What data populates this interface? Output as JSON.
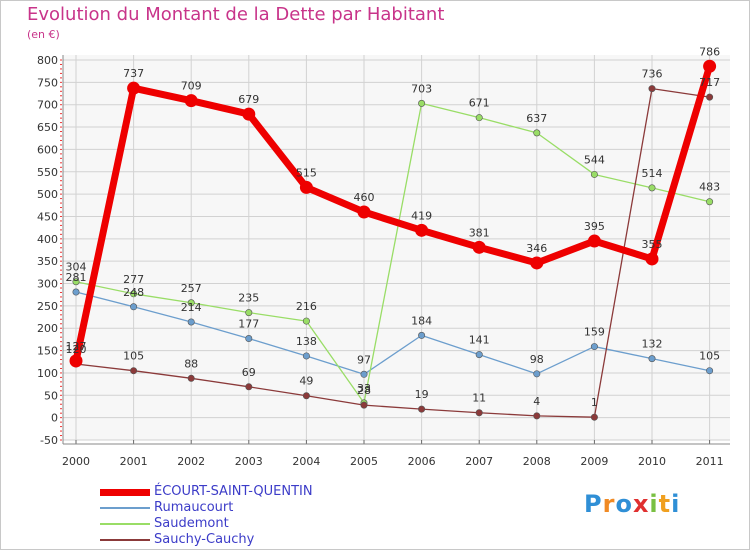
{
  "title": "Evolution du Montant de la Dette par Habitant",
  "subtitle": "(en €)",
  "logo_text": "Proxiti",
  "chart_data": {
    "type": "line",
    "ylim": [
      -50,
      800
    ],
    "yticks": [
      -50,
      0,
      50,
      100,
      150,
      200,
      250,
      300,
      350,
      400,
      450,
      500,
      550,
      600,
      650,
      700,
      750,
      800
    ],
    "x": [
      "2000",
      "2001",
      "2002",
      "2003",
      "2004",
      "2005",
      "2006",
      "2007",
      "2008",
      "2009",
      "2010",
      "2011"
    ],
    "grid": true,
    "legend_position": "bottom-left",
    "series": [
      {
        "name": "ÉCOURT-SAINT-QUENTIN",
        "color": "#ee0000",
        "values": [
          127,
          737,
          709,
          679,
          515,
          460,
          419,
          381,
          346,
          395,
          355,
          786
        ],
        "labels": [
          "127",
          "737",
          "709",
          "679",
          "515",
          "460",
          "419",
          "381",
          "346",
          "395",
          "355",
          "786"
        ]
      },
      {
        "name": "Rumaucourt",
        "color": "#6c9ecd",
        "values": [
          281,
          248,
          214,
          177,
          138,
          97,
          184,
          141,
          98,
          159,
          132,
          105
        ],
        "labels": [
          "281",
          "248",
          "214",
          "177",
          "138",
          "97",
          "184",
          "141",
          "98",
          "159",
          "132",
          "105"
        ]
      },
      {
        "name": "Saudemont",
        "color": "#99dd66",
        "values": [
          304,
          277,
          257,
          235,
          216,
          33,
          703,
          671,
          637,
          544,
          514,
          483
        ],
        "labels": [
          "304",
          "277",
          "257",
          "235",
          "216",
          "33",
          "703",
          "671",
          "637",
          "544",
          "514",
          "483"
        ]
      },
      {
        "name": "Sauchy-Cauchy",
        "color": "#8b3a3a",
        "values": [
          120,
          105,
          88,
          69,
          49,
          28,
          19,
          11,
          4,
          1,
          736,
          717
        ],
        "labels": [
          "120",
          "105",
          "88",
          "69",
          "49",
          "28",
          "19",
          "11",
          "4",
          "1",
          "736",
          "717"
        ]
      }
    ]
  }
}
